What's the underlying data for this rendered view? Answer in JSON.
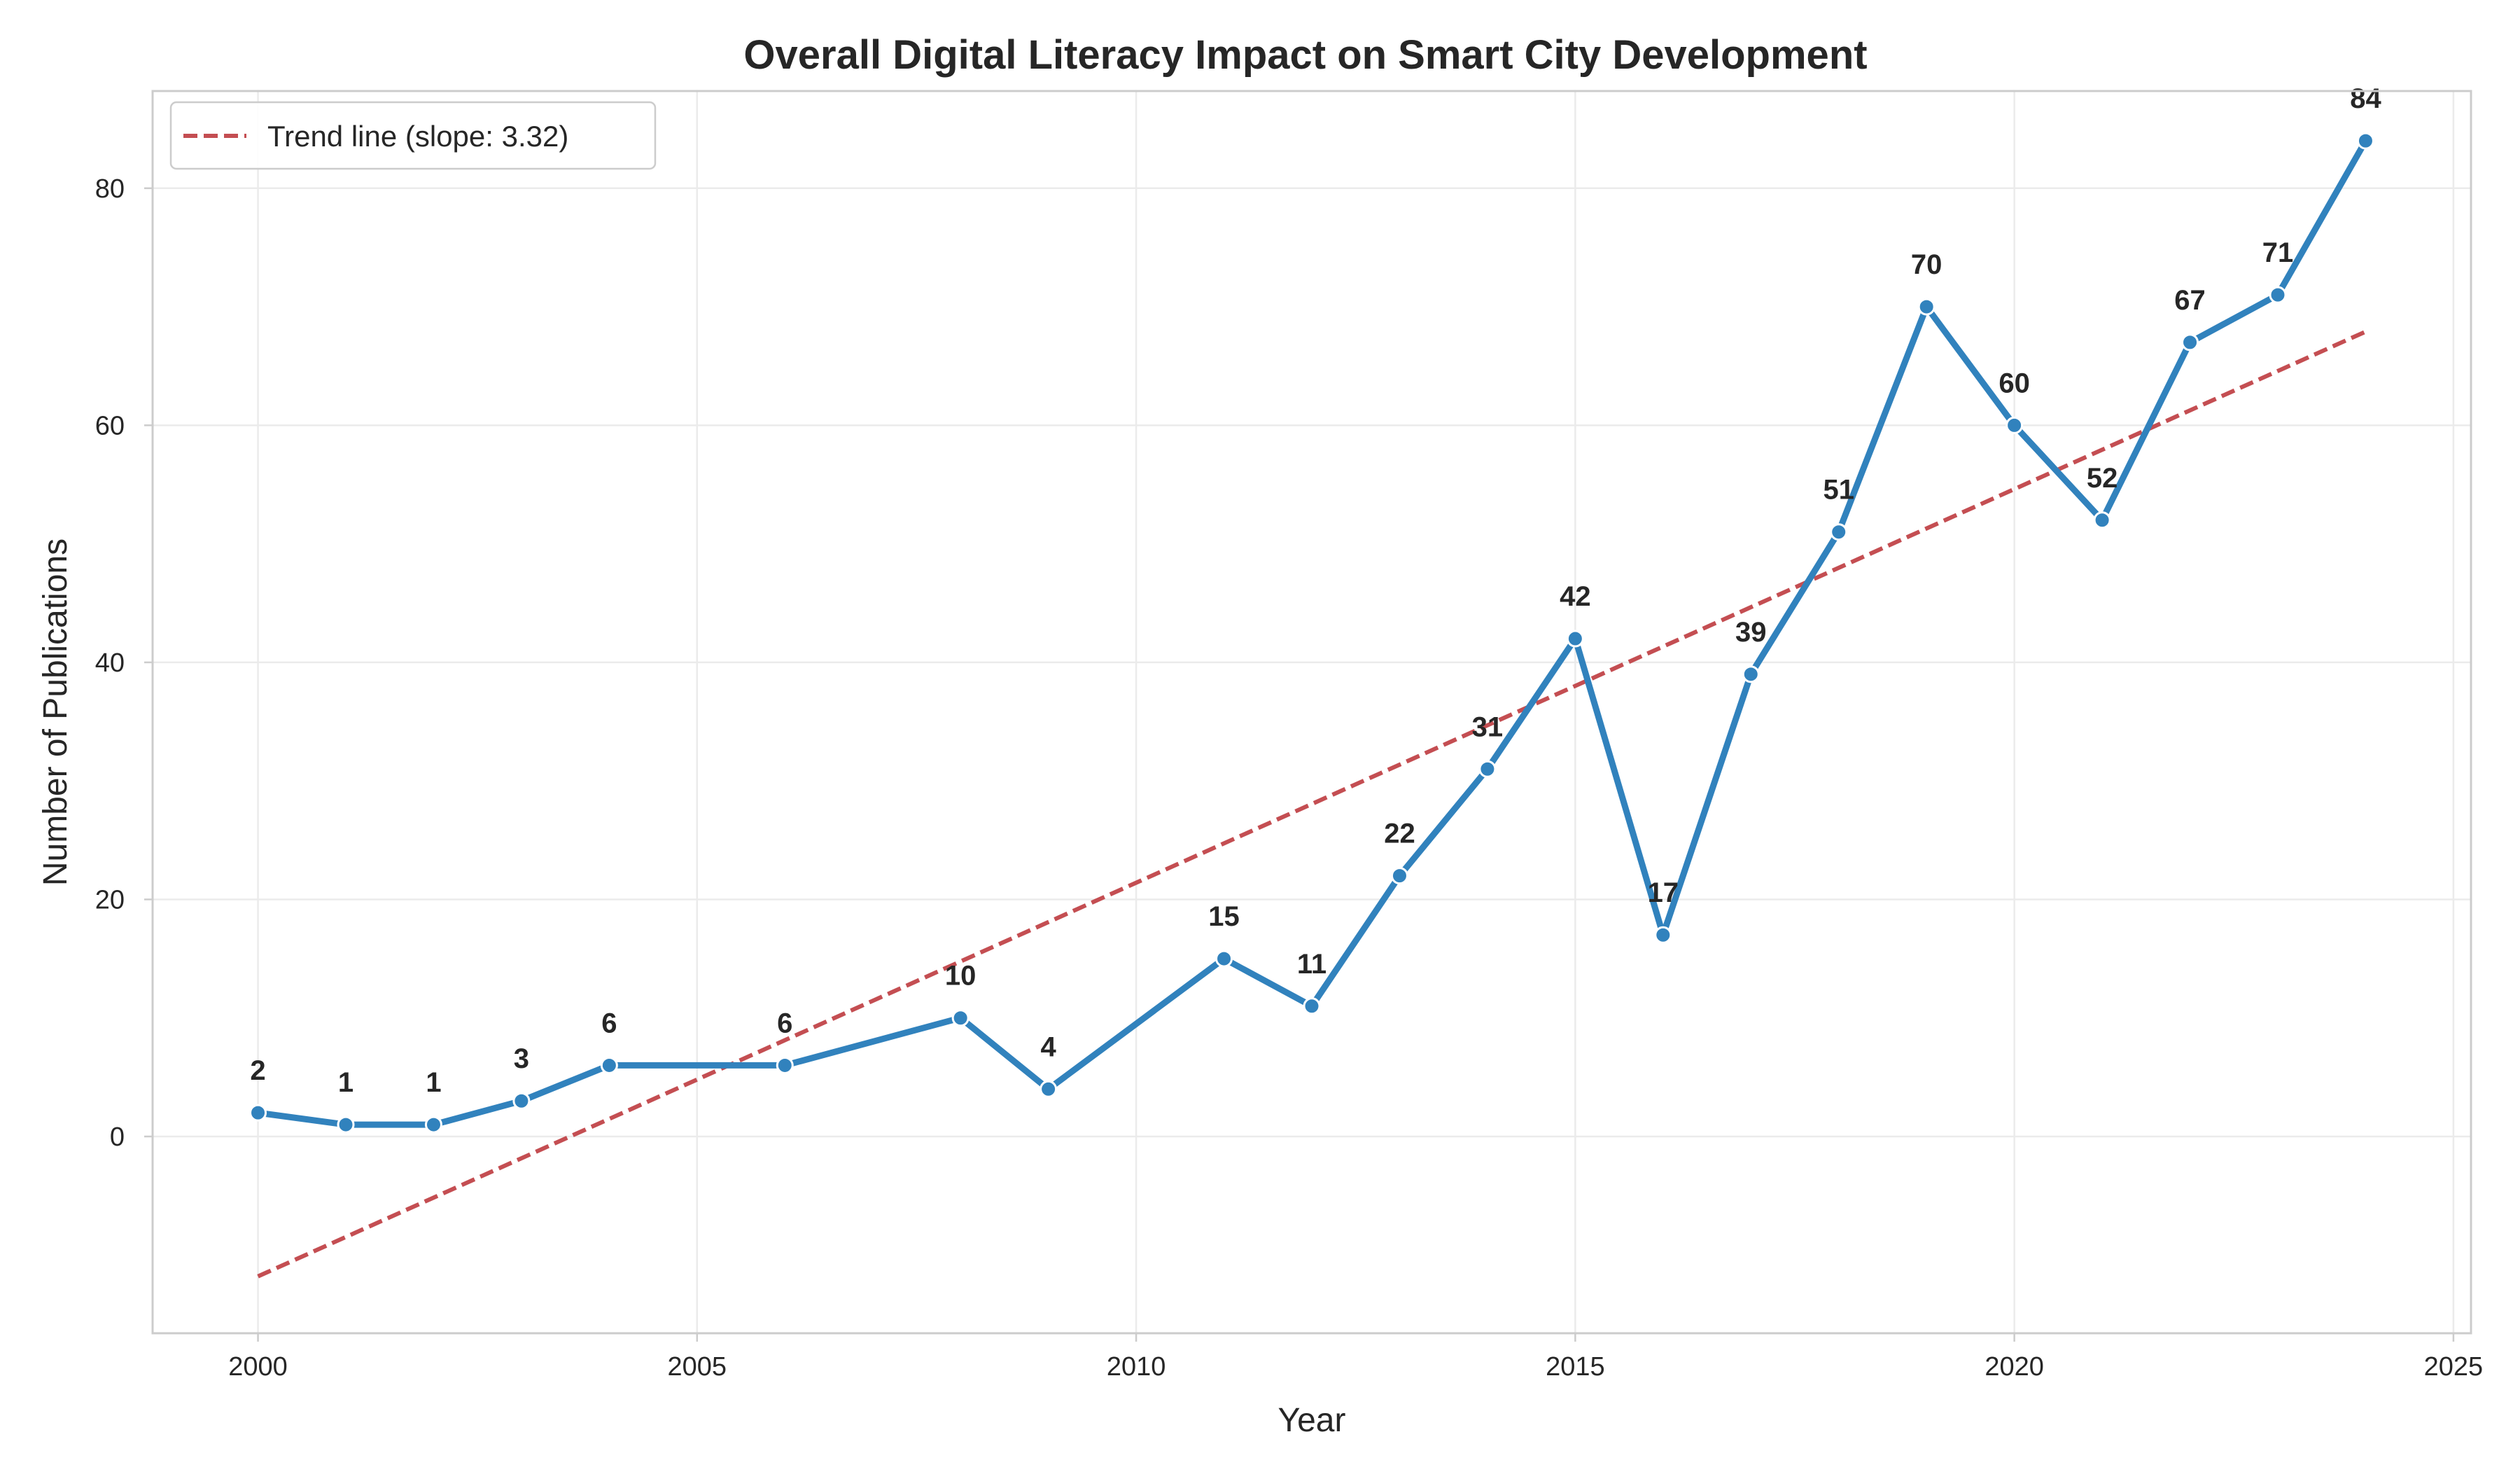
{
  "chart_data": {
    "type": "line",
    "title": "Overall Digital Literacy Impact on Smart City Development",
    "xlabel": "Year",
    "ylabel": "Number of Publications",
    "xlim": [
      1998.8,
      2025.2
    ],
    "ylim": [
      -16.6,
      88.2
    ],
    "xticks": [
      2000,
      2005,
      2010,
      2015,
      2020,
      2025
    ],
    "yticks": [
      0,
      20,
      40,
      60,
      80
    ],
    "grid": true,
    "legend_position": "top-left",
    "series": [
      {
        "x": [
          2000,
          2001,
          2002,
          2003,
          2004,
          2006,
          2008,
          2009,
          2011,
          2012,
          2013,
          2014,
          2015,
          2016,
          2017,
          2018,
          2019,
          2020,
          2021,
          2022,
          2023,
          2024
        ],
        "values": [
          2,
          1,
          1,
          3,
          6,
          6,
          10,
          4,
          15,
          11,
          22,
          31,
          42,
          17,
          39,
          51,
          70,
          60,
          52,
          67,
          71,
          84
        ],
        "color": "#3182bd",
        "data_labels": true
      }
    ],
    "trend_line": {
      "name": "Trend line (slope: 3.32)",
      "x": [
        2000,
        2024
      ],
      "values": [
        -11.8,
        67.9
      ],
      "color": "#c44e52",
      "style": "dashed"
    }
  }
}
